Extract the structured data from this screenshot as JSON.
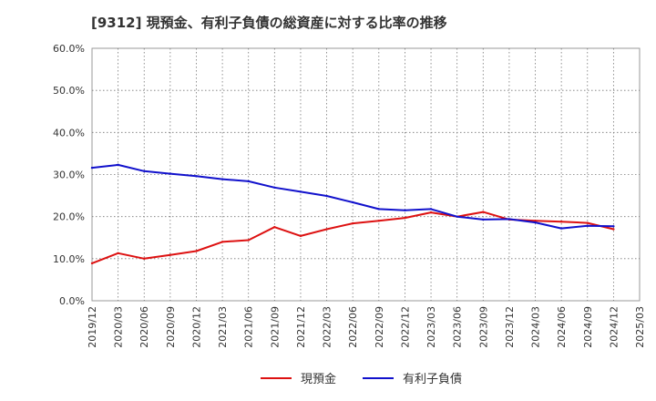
{
  "page_title": "[9312]  現預金、有利子負債の総資産に対する比率の推移",
  "chart_data": {
    "type": "line",
    "title": "[9312]  現預金、有利子負債の総資産に対する比率の推移",
    "xlabel": "",
    "ylabel": "",
    "ylim": [
      0,
      60
    ],
    "y_ticks": [
      "0.0%",
      "10.0%",
      "20.0%",
      "30.0%",
      "40.0%",
      "50.0%",
      "60.0%"
    ],
    "grid": true,
    "legend_position": "bottom-center",
    "categories": [
      "2019/12",
      "2020/03",
      "2020/06",
      "2020/09",
      "2020/12",
      "2021/03",
      "2021/06",
      "2021/09",
      "2021/12",
      "2022/03",
      "2022/06",
      "2022/09",
      "2022/12",
      "2023/03",
      "2023/06",
      "2023/09",
      "2023/12",
      "2024/03",
      "2024/06",
      "2024/09",
      "2024/12",
      "2025/03"
    ],
    "series": [
      {
        "name": "現預金",
        "color": "#dd1111",
        "values": [
          8.9,
          11.3,
          10.0,
          10.9,
          11.8,
          14.0,
          14.4,
          17.5,
          15.4,
          17.0,
          18.4,
          19.0,
          19.7,
          21.0,
          20.0,
          21.1,
          19.3,
          19.0,
          18.8,
          18.5,
          17.0,
          null
        ]
      },
      {
        "name": "有利子負債",
        "color": "#1111cc",
        "values": [
          31.6,
          32.3,
          30.8,
          30.2,
          29.6,
          28.9,
          28.4,
          26.9,
          25.9,
          24.9,
          23.4,
          21.8,
          21.5,
          21.8,
          20.0,
          19.3,
          19.4,
          18.6,
          17.2,
          17.8,
          17.7,
          null
        ]
      }
    ]
  }
}
